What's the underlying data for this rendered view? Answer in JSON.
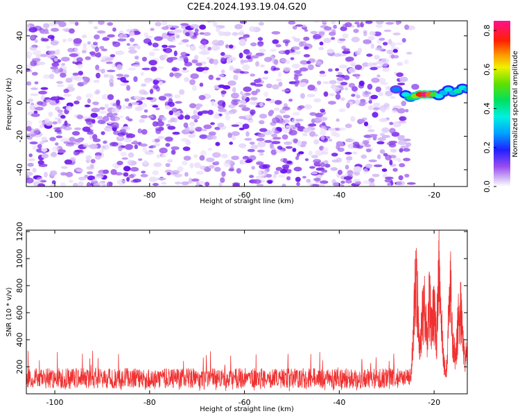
{
  "title": "C2E4.2024.193.19.04.G20",
  "chart_data": [
    {
      "type": "heatmap",
      "xlabel": "Height of straight line (km)",
      "ylabel": "Frequency (Hz)",
      "xlim": [
        -106,
        -13
      ],
      "ylim": [
        -50,
        49
      ],
      "x_ticks": [
        -100,
        -80,
        -60,
        -40,
        -20
      ],
      "y_ticks": [
        -40,
        -20,
        0,
        20,
        40
      ],
      "noise_region_x": [
        -106,
        -25
      ],
      "signal_track": [
        {
          "x": -28,
          "y": 8,
          "v": 0.25
        },
        {
          "x": -26,
          "y": 5,
          "v": 0.35
        },
        {
          "x": -25,
          "y": 3,
          "v": 0.45
        },
        {
          "x": -24,
          "y": 4,
          "v": 0.55
        },
        {
          "x": -23,
          "y": 5,
          "v": 0.75
        },
        {
          "x": -22,
          "y": 5,
          "v": 0.85
        },
        {
          "x": -21,
          "y": 5,
          "v": 0.7
        },
        {
          "x": -20,
          "y": 5,
          "v": 0.5
        },
        {
          "x": -19,
          "y": 4,
          "v": 0.35
        },
        {
          "x": -18,
          "y": 6,
          "v": 0.3
        },
        {
          "x": -17,
          "y": 8,
          "v": 0.35
        },
        {
          "x": -16,
          "y": 6,
          "v": 0.3
        },
        {
          "x": -15,
          "y": 7,
          "v": 0.4
        },
        {
          "x": -14,
          "y": 9,
          "v": 0.35
        },
        {
          "x": -13,
          "y": 8,
          "v": 0.3
        }
      ],
      "colorbar": {
        "label": "Normalized spectral amplitude",
        "range": [
          0,
          0.85
        ],
        "ticks": [
          0.0,
          0.2,
          0.4,
          0.6,
          0.8
        ]
      }
    },
    {
      "type": "line",
      "xlabel": "Height of straight line (km)",
      "ylabel": "SNR (10 * v/v)",
      "xlim": [
        -106,
        -13
      ],
      "ylim": [
        0,
        1210
      ],
      "x_ticks": [
        -100,
        -80,
        -60,
        -40,
        -20
      ],
      "y_ticks": [
        200,
        400,
        600,
        800,
        1000,
        1200
      ],
      "series_color": "#f03030",
      "noise_band": {
        "x_start": -106,
        "x_end": -25,
        "typical_low": 40,
        "typical_high": 190,
        "peak": 320
      },
      "signal_envelope": [
        {
          "x": -25,
          "y": 110
        },
        {
          "x": -24.5,
          "y": 420
        },
        {
          "x": -24,
          "y": 1080
        },
        {
          "x": -23.5,
          "y": 900
        },
        {
          "x": -23,
          "y": 380
        },
        {
          "x": -22.5,
          "y": 720
        },
        {
          "x": -22,
          "y": 800
        },
        {
          "x": -21.5,
          "y": 500
        },
        {
          "x": -21,
          "y": 880
        },
        {
          "x": -20.5,
          "y": 640
        },
        {
          "x": -20,
          "y": 780
        },
        {
          "x": -19.5,
          "y": 480
        },
        {
          "x": -19,
          "y": 1200
        },
        {
          "x": -18.5,
          "y": 700
        },
        {
          "x": -18,
          "y": 300
        },
        {
          "x": -17.5,
          "y": 150
        },
        {
          "x": -17,
          "y": 650
        },
        {
          "x": -16.5,
          "y": 1000
        },
        {
          "x": -16,
          "y": 450
        },
        {
          "x": -15.5,
          "y": 350
        },
        {
          "x": -15,
          "y": 650
        },
        {
          "x": -14.5,
          "y": 860
        },
        {
          "x": -14,
          "y": 500
        },
        {
          "x": -13.5,
          "y": 300
        },
        {
          "x": -13,
          "y": 460
        }
      ]
    }
  ]
}
